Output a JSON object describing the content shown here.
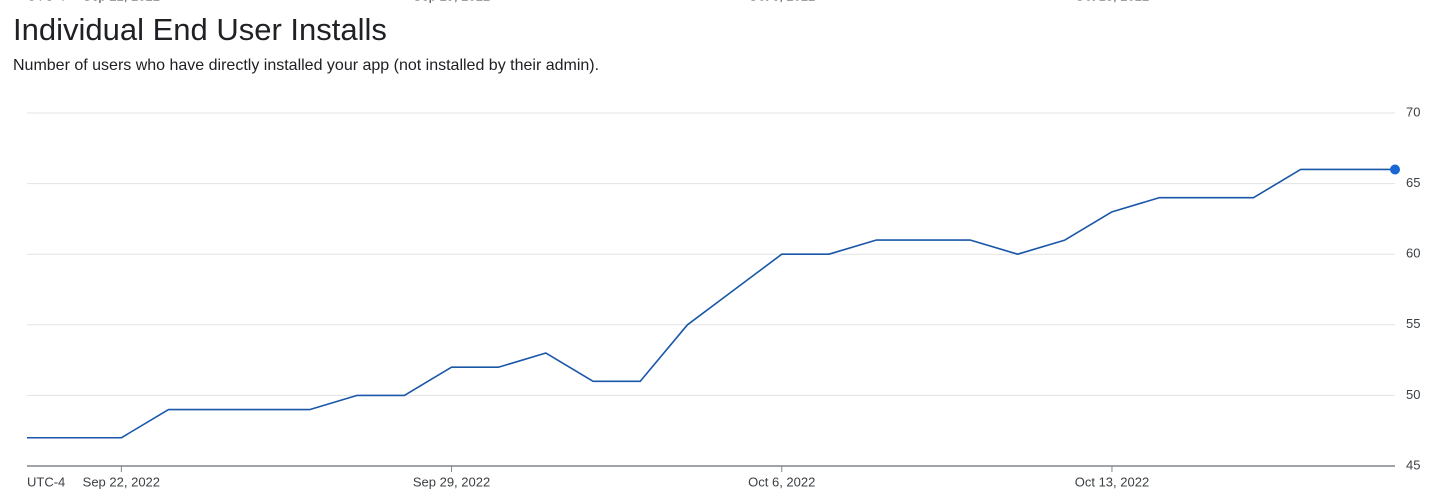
{
  "chart_data": {
    "type": "line",
    "title": "Individual End User Installs",
    "subtitle": "Number of users who have directly installed your app (not installed by their admin).",
    "timezone_label": "UTC-4",
    "x": [
      "2022-09-20",
      "2022-09-21",
      "2022-09-22",
      "2022-09-23",
      "2022-09-24",
      "2022-09-25",
      "2022-09-26",
      "2022-09-27",
      "2022-09-28",
      "2022-09-29",
      "2022-09-30",
      "2022-10-01",
      "2022-10-02",
      "2022-10-03",
      "2022-10-04",
      "2022-10-05",
      "2022-10-06",
      "2022-10-07",
      "2022-10-08",
      "2022-10-09",
      "2022-10-10",
      "2022-10-11",
      "2022-10-12",
      "2022-10-13",
      "2022-10-14",
      "2022-10-15",
      "2022-10-16",
      "2022-10-17",
      "2022-10-18",
      "2022-10-19"
    ],
    "series": [
      {
        "color": "#1a57a8",
        "values": [
          47,
          47,
          47,
          49,
          49,
          49,
          49,
          50,
          50,
          52,
          52,
          53,
          51,
          51,
          55,
          57.5,
          60,
          60,
          61,
          61,
          61,
          60,
          61,
          63,
          64,
          64,
          64,
          66,
          66,
          66
        ]
      }
    ],
    "xlim": [
      "2022-09-20",
      "2022-10-19"
    ],
    "xticks": [
      {
        "value": "2022-09-22",
        "label": "Sep 22, 2022"
      },
      {
        "value": "2022-09-29",
        "label": "Sep 29, 2022"
      },
      {
        "value": "2022-10-06",
        "label": "Oct 6, 2022"
      },
      {
        "value": "2022-10-13",
        "label": "Oct 13, 2022"
      }
    ],
    "ylim": [
      45,
      70
    ],
    "yticks": [
      45,
      50,
      55,
      60,
      65,
      70
    ],
    "grid": true,
    "end_marker_color": "#1a66d4"
  }
}
